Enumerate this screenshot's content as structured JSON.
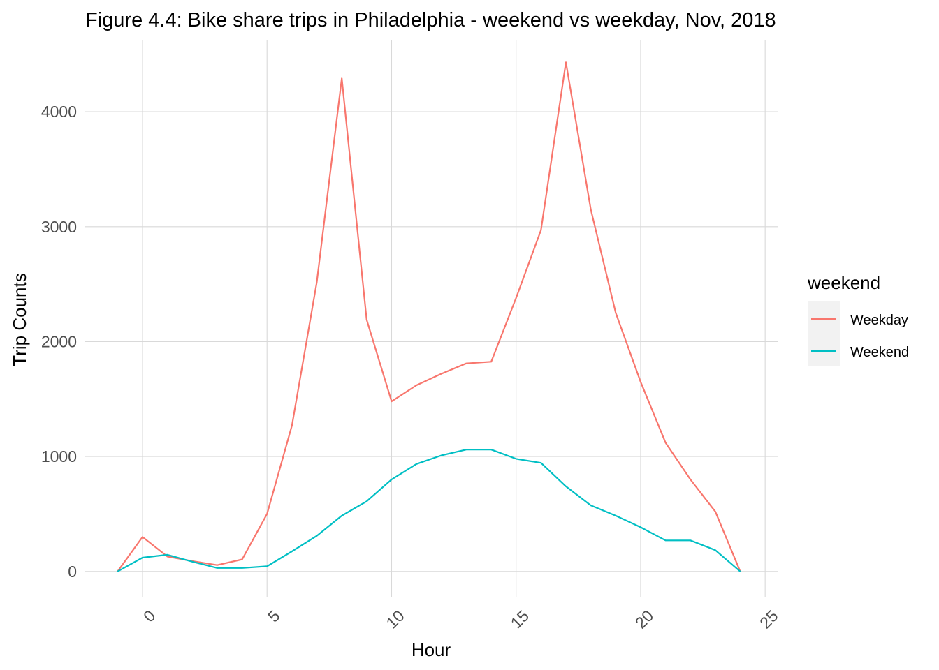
{
  "chart_data": {
    "type": "line",
    "title": "Figure 4.4: Bike share trips in Philadelphia - weekend vs weekday, Nov, 2018",
    "xlabel": "Hour",
    "ylabel": "Trip Counts",
    "xlim": [
      -2.3,
      25.5
    ],
    "ylim": [
      -220,
      4620
    ],
    "x_ticks": [
      0,
      5,
      10,
      15,
      20,
      25
    ],
    "x_tick_labels": [
      "0",
      "5",
      "10",
      "15",
      "20",
      "25"
    ],
    "y_ticks": [
      0,
      1000,
      2000,
      3000,
      4000
    ],
    "y_tick_labels": [
      "0",
      "1000",
      "2000",
      "3000",
      "4000"
    ],
    "x_tick_rotation": -45,
    "grid": true,
    "legend": {
      "title": "weekend",
      "position": "right"
    },
    "x": [
      -1,
      0,
      1,
      2,
      3,
      4,
      5,
      6,
      7,
      8,
      9,
      10,
      11,
      12,
      13,
      14,
      15,
      16,
      17,
      18,
      19,
      20,
      21,
      22,
      23,
      24
    ],
    "series": [
      {
        "name": "Weekday",
        "color": "#F8766D",
        "values": [
          0,
          300,
          130,
          90,
          55,
          105,
          500,
          1270,
          2520,
          4290,
          2190,
          1480,
          1620,
          1720,
          1810,
          1825,
          2380,
          2970,
          4430,
          3150,
          2250,
          1650,
          1120,
          800,
          520,
          0
        ]
      },
      {
        "name": "Weekend",
        "color": "#00BFC4",
        "values": [
          0,
          120,
          145,
          85,
          30,
          30,
          45,
          175,
          310,
          485,
          610,
          800,
          935,
          1010,
          1060,
          1060,
          980,
          945,
          740,
          575,
          485,
          385,
          270,
          270,
          185,
          0
        ]
      }
    ]
  }
}
